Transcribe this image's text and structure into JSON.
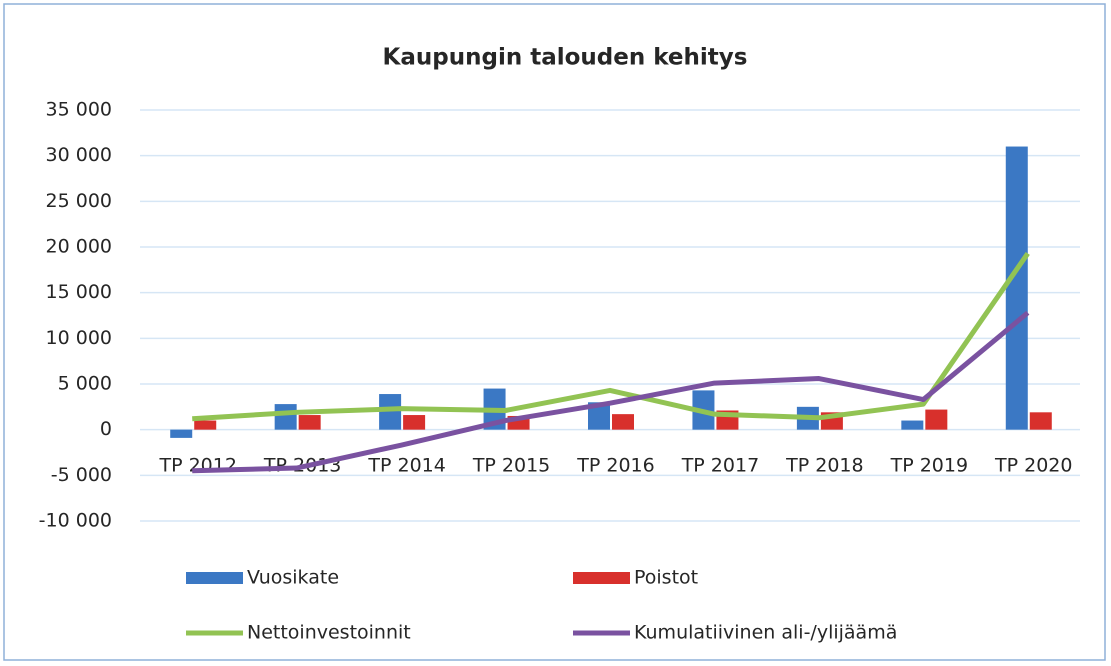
{
  "chart_data": {
    "type": "bar",
    "title": "Kaupungin talouden kehitys",
    "categories": [
      "TP 2012",
      "TP 2013",
      "TP 2014",
      "TP 2015",
      "TP 2016",
      "TP 2017",
      "TP 2018",
      "TP 2019",
      "TP 2020"
    ],
    "series": [
      {
        "name": "Vuosikate",
        "type": "bar",
        "color": "#3b78c4",
        "values": [
          -900,
          2800,
          3900,
          4500,
          3000,
          4300,
          2500,
          1000,
          31000
        ]
      },
      {
        "name": "Poistot",
        "type": "bar",
        "color": "#d8302c",
        "values": [
          1000,
          1600,
          1600,
          1500,
          1700,
          2100,
          1900,
          2200,
          1900
        ]
      },
      {
        "name": "Nettoinvestoinnit",
        "type": "line",
        "color": "#92c353",
        "values": [
          1200,
          1900,
          2300,
          2100,
          4300,
          1700,
          1300,
          2800,
          19300
        ]
      },
      {
        "name": "Kumulatiivinen ali-/ylijäämä",
        "type": "line",
        "color": "#7a52a0",
        "values": [
          -4500,
          -4200,
          -1700,
          1000,
          2900,
          5100,
          5600,
          3300,
          12800
        ]
      }
    ],
    "ylim": [
      -10000,
      35000
    ],
    "yticks": [
      {
        "value": -10000,
        "label": "-10 000"
      },
      {
        "value": -5000,
        "label": "-5 000"
      },
      0,
      {
        "value": 5000,
        "label": "5 000"
      },
      {
        "value": 10000,
        "label": "10 000"
      },
      {
        "value": 15000,
        "label": "15 000"
      },
      {
        "value": 20000,
        "label": "20 000"
      },
      {
        "value": 25000,
        "label": "25 000"
      },
      {
        "value": 30000,
        "label": "30 000"
      },
      {
        "value": 35000,
        "label": "35 000"
      }
    ],
    "grid": true,
    "legend": "bottom"
  }
}
